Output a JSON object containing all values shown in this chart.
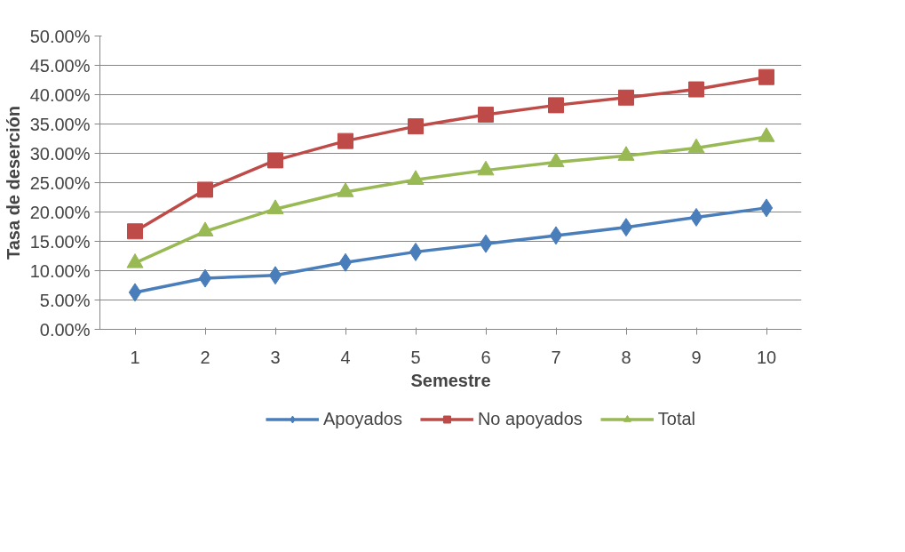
{
  "chart_data": {
    "type": "line",
    "xlabel": "Semestre",
    "ylabel": "Tasa de deserción",
    "categories": [
      "1",
      "2",
      "3",
      "4",
      "5",
      "6",
      "7",
      "8",
      "9",
      "10"
    ],
    "series": [
      {
        "name": "Apoyados",
        "color": "#4a7ebb",
        "marker": "diamond",
        "values": [
          6.3,
          8.7,
          9.2,
          11.4,
          13.2,
          14.6,
          16.0,
          17.4,
          19.1,
          20.7
        ]
      },
      {
        "name": "No apoyados",
        "color": "#be4b48",
        "marker": "square",
        "values": [
          16.7,
          23.8,
          28.8,
          32.1,
          34.6,
          36.6,
          38.2,
          39.5,
          40.9,
          43.0
        ]
      },
      {
        "name": "Total",
        "color": "#98b954",
        "marker": "triangle",
        "values": [
          11.3,
          16.7,
          20.5,
          23.4,
          25.5,
          27.1,
          28.5,
          29.6,
          30.9,
          32.8
        ]
      }
    ],
    "ylim": [
      0,
      50
    ],
    "yticks": [
      {
        "value": 0,
        "label": "0.00%"
      },
      {
        "value": 5,
        "label": "5.00%"
      },
      {
        "value": 10,
        "label": "10.00%"
      },
      {
        "value": 15,
        "label": "15.00%"
      },
      {
        "value": 20,
        "label": "20.00%"
      },
      {
        "value": 25,
        "label": "25.00%"
      },
      {
        "value": 30,
        "label": "30.00%"
      },
      {
        "value": 35,
        "label": "35.00%"
      },
      {
        "value": 40,
        "label": "40.00%"
      },
      {
        "value": 45,
        "label": "45.00%"
      },
      {
        "value": 50,
        "label": "50.00%"
      }
    ],
    "grid": "y",
    "legend": "bottom",
    "line_style": "solid"
  }
}
